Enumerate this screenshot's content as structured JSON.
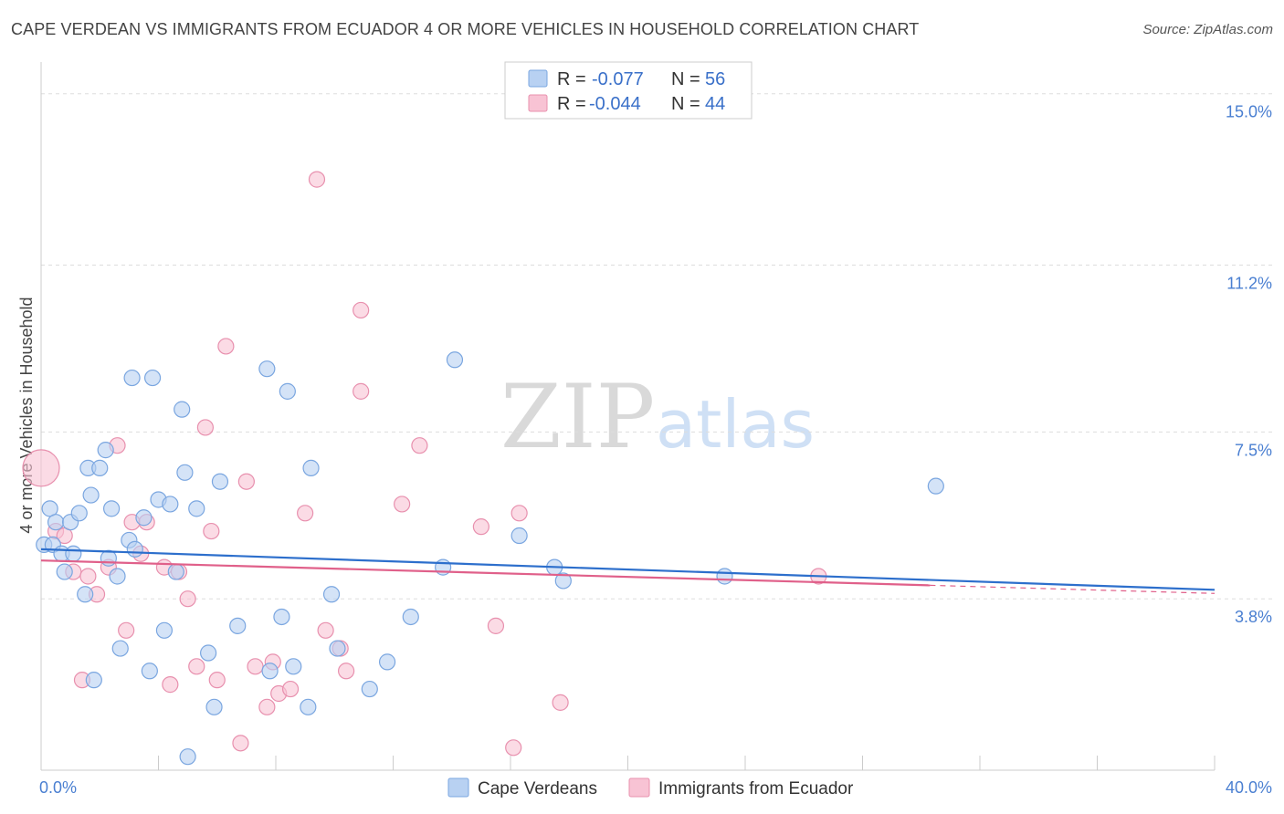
{
  "header": {
    "title": "CAPE VERDEAN VS IMMIGRANTS FROM ECUADOR 4 OR MORE VEHICLES IN HOUSEHOLD CORRELATION CHART",
    "source": "Source: ZipAtlas.com"
  },
  "watermark": {
    "zip": "ZIP",
    "atlas": "atlas"
  },
  "legend_top": {
    "rows": [
      {
        "r_label": "R = ",
        "r_value": "-0.077",
        "n_label": "N = ",
        "n_value": "56"
      },
      {
        "r_label": "R = ",
        "r_value": "-0.044",
        "n_label": "N = ",
        "n_value": "44"
      }
    ]
  },
  "colors": {
    "blue_fill": "#b8d1f2",
    "blue_stroke": "#7aa6e0",
    "blue_line": "#2d6fcc",
    "pink_fill": "#f8c3d4",
    "pink_stroke": "#e890ae",
    "pink_line": "#e0608a",
    "grid": "#dddddd",
    "tick_label": "#4a7fd1"
  },
  "chart_data": {
    "type": "scatter",
    "title": "CAPE VERDEAN VS IMMIGRANTS FROM ECUADOR 4 OR MORE VEHICLES IN HOUSEHOLD CORRELATION CHART",
    "xlabel": "",
    "ylabel": "4 or more Vehicles in Household",
    "xlim": [
      0,
      40
    ],
    "ylim": [
      0,
      15.5
    ],
    "x_tick_labels": [
      "0.0%",
      "40.0%"
    ],
    "y_ticks": [
      3.8,
      7.5,
      11.2,
      15.0
    ],
    "y_tick_labels": [
      "3.8%",
      "7.5%",
      "11.2%",
      "15.0%"
    ],
    "grid": true,
    "legend_position": "bottom",
    "series": [
      {
        "name": "Cape Verdeans",
        "trend": {
          "x": [
            0,
            40
          ],
          "y": [
            4.9,
            4.0
          ]
        },
        "points": [
          {
            "x": 0.1,
            "y": 5.0
          },
          {
            "x": 0.3,
            "y": 5.8
          },
          {
            "x": 0.4,
            "y": 5.0
          },
          {
            "x": 0.5,
            "y": 5.5
          },
          {
            "x": 0.7,
            "y": 4.8
          },
          {
            "x": 0.8,
            "y": 4.4
          },
          {
            "x": 1.0,
            "y": 5.5
          },
          {
            "x": 1.1,
            "y": 4.8
          },
          {
            "x": 1.3,
            "y": 5.7
          },
          {
            "x": 1.5,
            "y": 3.9
          },
          {
            "x": 1.6,
            "y": 6.7
          },
          {
            "x": 1.7,
            "y": 6.1
          },
          {
            "x": 1.8,
            "y": 2.0
          },
          {
            "x": 2.0,
            "y": 6.7
          },
          {
            "x": 2.2,
            "y": 7.1
          },
          {
            "x": 2.3,
            "y": 4.7
          },
          {
            "x": 2.4,
            "y": 5.8
          },
          {
            "x": 2.6,
            "y": 4.3
          },
          {
            "x": 2.7,
            "y": 2.7
          },
          {
            "x": 3.0,
            "y": 5.1
          },
          {
            "x": 3.1,
            "y": 8.7
          },
          {
            "x": 3.2,
            "y": 4.9
          },
          {
            "x": 3.5,
            "y": 5.6
          },
          {
            "x": 3.7,
            "y": 2.2
          },
          {
            "x": 3.8,
            "y": 8.7
          },
          {
            "x": 4.0,
            "y": 6.0
          },
          {
            "x": 4.2,
            "y": 3.1
          },
          {
            "x": 4.4,
            "y": 5.9
          },
          {
            "x": 4.6,
            "y": 4.4
          },
          {
            "x": 4.8,
            "y": 8.0
          },
          {
            "x": 4.9,
            "y": 6.6
          },
          {
            "x": 5.0,
            "y": 0.3
          },
          {
            "x": 5.3,
            "y": 5.8
          },
          {
            "x": 5.7,
            "y": 2.6
          },
          {
            "x": 5.9,
            "y": 1.4
          },
          {
            "x": 6.1,
            "y": 6.4
          },
          {
            "x": 6.7,
            "y": 3.2
          },
          {
            "x": 7.7,
            "y": 8.9
          },
          {
            "x": 7.8,
            "y": 2.2
          },
          {
            "x": 8.2,
            "y": 3.4
          },
          {
            "x": 8.4,
            "y": 8.4
          },
          {
            "x": 8.6,
            "y": 2.3
          },
          {
            "x": 9.1,
            "y": 1.4
          },
          {
            "x": 9.2,
            "y": 6.7
          },
          {
            "x": 9.9,
            "y": 3.9
          },
          {
            "x": 10.1,
            "y": 2.7
          },
          {
            "x": 11.2,
            "y": 1.8
          },
          {
            "x": 11.8,
            "y": 2.4
          },
          {
            "x": 12.6,
            "y": 3.4
          },
          {
            "x": 13.7,
            "y": 4.5
          },
          {
            "x": 14.1,
            "y": 9.1
          },
          {
            "x": 16.3,
            "y": 5.2
          },
          {
            "x": 17.5,
            "y": 4.5
          },
          {
            "x": 17.8,
            "y": 4.2
          },
          {
            "x": 23.3,
            "y": 4.3
          },
          {
            "x": 30.5,
            "y": 6.3
          }
        ]
      },
      {
        "name": "Immigrants from Ecuador",
        "trend": {
          "x": [
            0,
            30.3
          ],
          "y": [
            4.65,
            4.1
          ]
        },
        "trend_dashed": {
          "x": [
            30.3,
            40
          ],
          "y": [
            4.1,
            3.92
          ]
        },
        "points": [
          {
            "x": 0.0,
            "y": 6.7
          },
          {
            "x": 0.5,
            "y": 5.3
          },
          {
            "x": 0.8,
            "y": 5.2
          },
          {
            "x": 1.1,
            "y": 4.4
          },
          {
            "x": 1.4,
            "y": 2.0
          },
          {
            "x": 1.6,
            "y": 4.3
          },
          {
            "x": 1.9,
            "y": 3.9
          },
          {
            "x": 2.3,
            "y": 4.5
          },
          {
            "x": 2.6,
            "y": 7.2
          },
          {
            "x": 2.9,
            "y": 3.1
          },
          {
            "x": 3.1,
            "y": 5.5
          },
          {
            "x": 3.4,
            "y": 4.8
          },
          {
            "x": 3.6,
            "y": 5.5
          },
          {
            "x": 4.2,
            "y": 4.5
          },
          {
            "x": 4.4,
            "y": 1.9
          },
          {
            "x": 4.7,
            "y": 4.4
          },
          {
            "x": 5.0,
            "y": 3.8
          },
          {
            "x": 5.3,
            "y": 2.3
          },
          {
            "x": 5.6,
            "y": 7.6
          },
          {
            "x": 5.8,
            "y": 5.3
          },
          {
            "x": 6.0,
            "y": 2.0
          },
          {
            "x": 6.3,
            "y": 9.4
          },
          {
            "x": 6.8,
            "y": 0.6
          },
          {
            "x": 7.0,
            "y": 6.4
          },
          {
            "x": 7.3,
            "y": 2.3
          },
          {
            "x": 7.7,
            "y": 1.4
          },
          {
            "x": 7.9,
            "y": 2.4
          },
          {
            "x": 8.1,
            "y": 1.7
          },
          {
            "x": 8.5,
            "y": 1.8
          },
          {
            "x": 9.0,
            "y": 5.7
          },
          {
            "x": 9.4,
            "y": 13.1
          },
          {
            "x": 9.7,
            "y": 3.1
          },
          {
            "x": 10.2,
            "y": 2.7
          },
          {
            "x": 10.4,
            "y": 2.2
          },
          {
            "x": 10.9,
            "y": 10.2
          },
          {
            "x": 10.9,
            "y": 8.4
          },
          {
            "x": 12.3,
            "y": 5.9
          },
          {
            "x": 12.9,
            "y": 7.2
          },
          {
            "x": 15.0,
            "y": 5.4
          },
          {
            "x": 15.5,
            "y": 3.2
          },
          {
            "x": 16.1,
            "y": 0.5
          },
          {
            "x": 16.3,
            "y": 5.7
          },
          {
            "x": 17.7,
            "y": 1.5
          },
          {
            "x": 26.5,
            "y": 4.3
          }
        ]
      }
    ]
  }
}
